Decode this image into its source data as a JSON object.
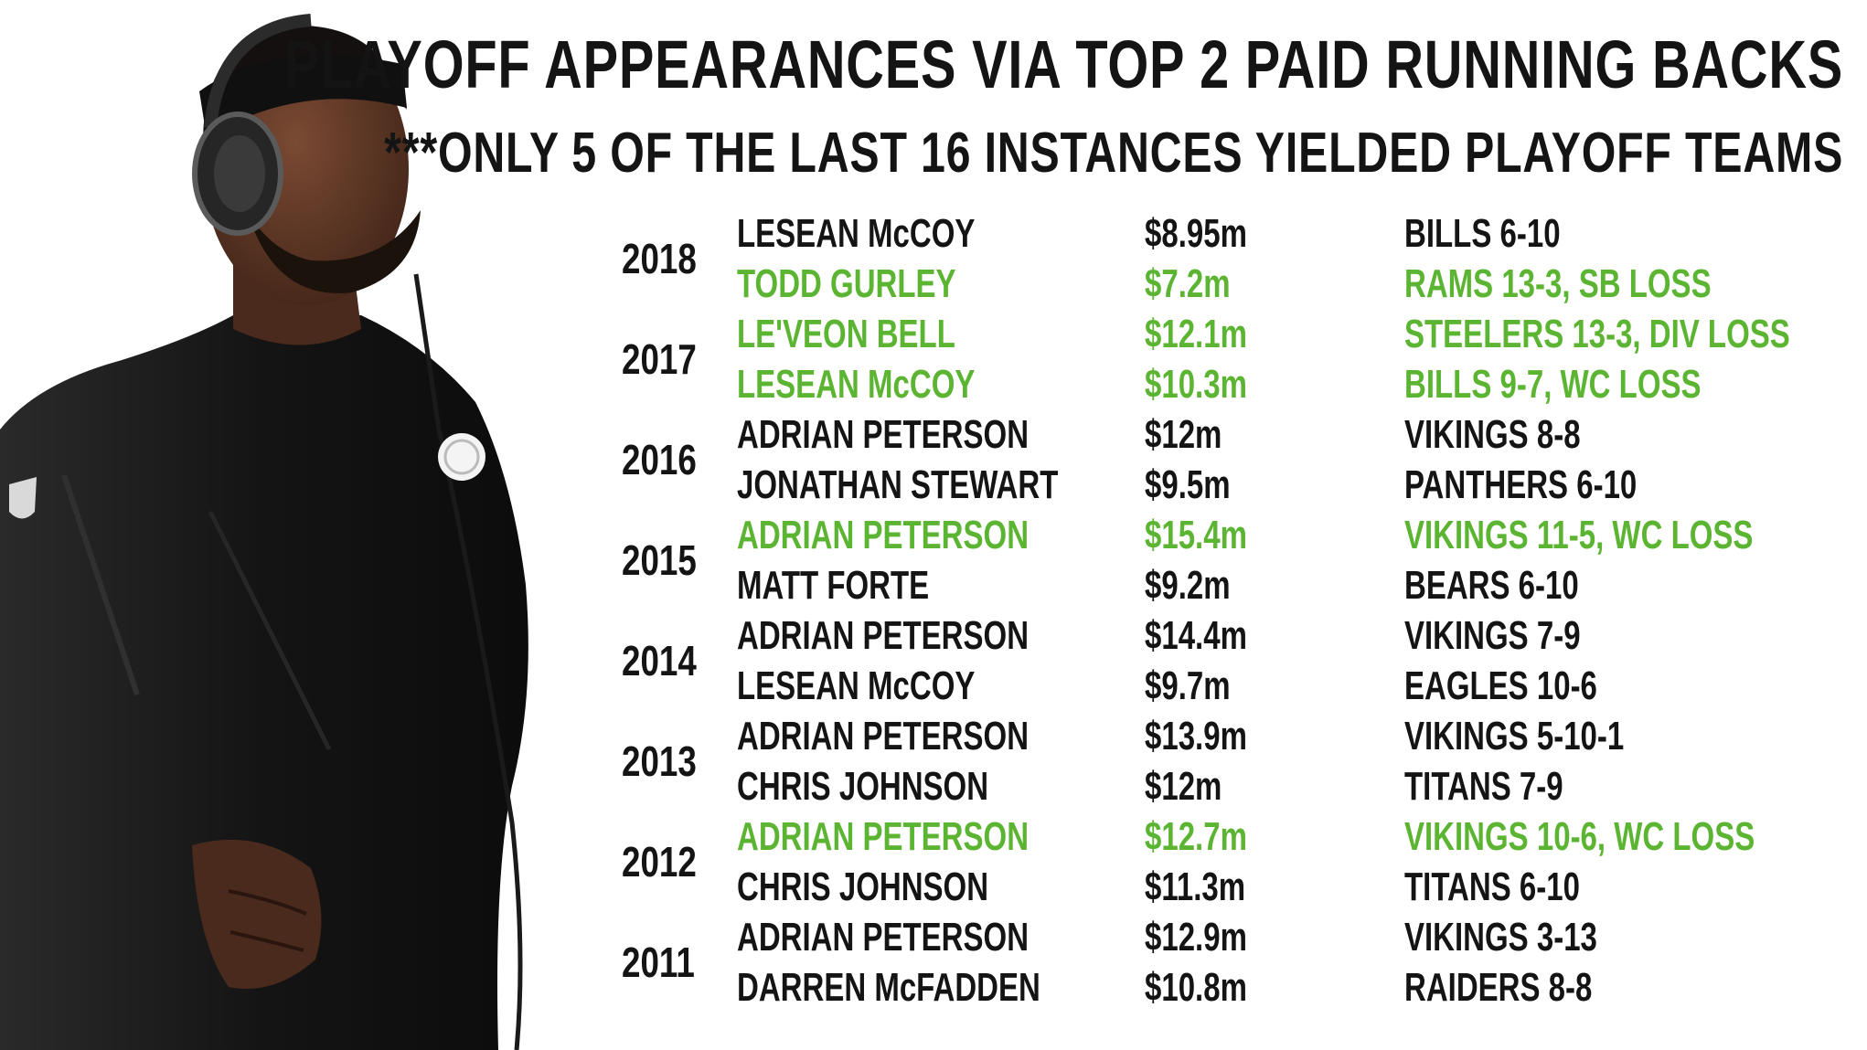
{
  "title": "PLAYOFF APPEARANCES VIA TOP 2 PAID RUNNING BACKS",
  "subtitle": "***ONLY 5 OF THE LAST 16 INSTANCES YIELDED PLAYOFF TEAMS",
  "colors": {
    "playoff": "#5cb532",
    "default": "#141414",
    "background": "#ffffff"
  },
  "seasons": [
    {
      "year": "2018",
      "players": [
        {
          "name": "LESEAN McCOY",
          "salary": "$8.95m",
          "team": "BILLS 6-10",
          "playoff": false
        },
        {
          "name": "TODD GURLEY",
          "salary": "$7.2m",
          "team": "RAMS 13-3, SB LOSS",
          "playoff": true
        }
      ]
    },
    {
      "year": "2017",
      "players": [
        {
          "name": "LE'VEON BELL",
          "salary": "$12.1m",
          "team": "STEELERS 13-3, DIV LOSS",
          "playoff": true
        },
        {
          "name": "LESEAN McCOY",
          "salary": "$10.3m",
          "team": "BILLS 9-7, WC LOSS",
          "playoff": true
        }
      ]
    },
    {
      "year": "2016",
      "players": [
        {
          "name": "ADRIAN PETERSON",
          "salary": "$12m",
          "team": "VIKINGS 8-8",
          "playoff": false
        },
        {
          "name": "JONATHAN STEWART",
          "salary": "$9.5m",
          "team": "PANTHERS 6-10",
          "playoff": false
        }
      ]
    },
    {
      "year": "2015",
      "players": [
        {
          "name": "ADRIAN PETERSON",
          "salary": "$15.4m",
          "team": "VIKINGS 11-5, WC LOSS",
          "playoff": true
        },
        {
          "name": "MATT FORTE",
          "salary": "$9.2m",
          "team": "BEARS 6-10",
          "playoff": false
        }
      ]
    },
    {
      "year": "2014",
      "players": [
        {
          "name": "ADRIAN PETERSON",
          "salary": "$14.4m",
          "team": "VIKINGS 7-9",
          "playoff": false
        },
        {
          "name": "LESEAN McCOY",
          "salary": "$9.7m",
          "team": "EAGLES 10-6",
          "playoff": false
        }
      ]
    },
    {
      "year": "2013",
      "players": [
        {
          "name": "ADRIAN PETERSON",
          "salary": "$13.9m",
          "team": "VIKINGS 5-10-1",
          "playoff": false
        },
        {
          "name": "CHRIS JOHNSON",
          "salary": "$12m",
          "team": "TITANS 7-9",
          "playoff": false
        }
      ]
    },
    {
      "year": "2012",
      "players": [
        {
          "name": "ADRIAN PETERSON",
          "salary": "$12.7m",
          "team": "VIKINGS 10-6, WC LOSS",
          "playoff": true
        },
        {
          "name": "CHRIS JOHNSON",
          "salary": "$11.3m",
          "team": "TITANS 6-10",
          "playoff": false
        }
      ]
    },
    {
      "year": "2011",
      "players": [
        {
          "name": "ADRIAN PETERSON",
          "salary": "$12.9m",
          "team": "VIKINGS 3-13",
          "playoff": false
        },
        {
          "name": "DARREN McFADDEN",
          "salary": "$10.8m",
          "team": "RAIDERS 8-8",
          "playoff": false
        }
      ]
    }
  ]
}
